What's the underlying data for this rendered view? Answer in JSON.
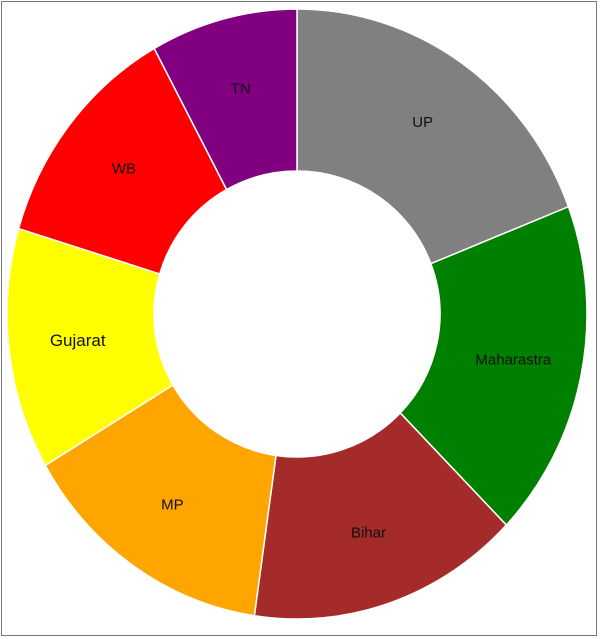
{
  "chart_data": {
    "type": "pie",
    "variant": "donut",
    "title": "",
    "legend": "none",
    "slices": [
      {
        "label": "UP",
        "value": 19.3,
        "color": "#808080"
      },
      {
        "label": "Maharastra",
        "value": 17.9,
        "color": "#008000"
      },
      {
        "label": "Bihar",
        "value": 15.2,
        "color": "#a52a2a"
      },
      {
        "label": "MP",
        "value": 14.4,
        "color": "#ffa500"
      },
      {
        "label": "Gujarat",
        "value": 12.8,
        "color": "#ffff00"
      },
      {
        "label": "WB",
        "value": 12.3,
        "color": "#ff0000"
      },
      {
        "label": "TN",
        "value": 8.2,
        "color": "#800080"
      }
    ]
  }
}
